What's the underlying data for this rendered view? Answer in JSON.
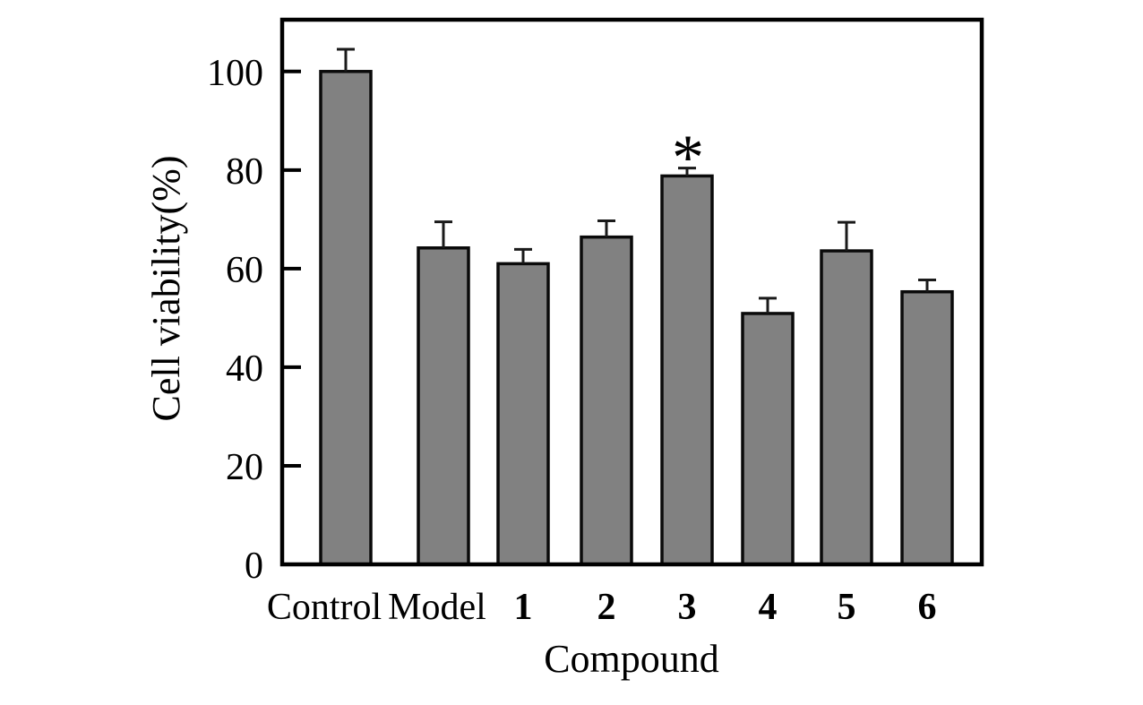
{
  "figure": {
    "background": "#ffffff",
    "bar_fill": "#818181",
    "bar_edge": "#0a0a0a",
    "axis_color": "#000000",
    "error_bar_color": "#1a1a1a",
    "text_color": "#000000"
  },
  "chart_data": {
    "type": "bar",
    "title": "",
    "xlabel": "Compound",
    "ylabel": "Cell viability(%)",
    "categories": [
      "Control",
      "Model",
      "1",
      "2",
      "3",
      "4",
      "5",
      "6"
    ],
    "values": [
      100,
      64.2,
      61,
      66.4,
      78.8,
      50.9,
      63.6,
      55.3
    ],
    "errors_plus": [
      4.5,
      5.3,
      2.9,
      3.3,
      1.6,
      3.1,
      5.8,
      2.4
    ],
    "emphasized_categories": [
      "1",
      "2",
      "3",
      "4",
      "5",
      "6"
    ],
    "yticks": [
      0,
      20,
      40,
      60,
      80,
      100
    ],
    "ytick_labels": [
      "0",
      "20",
      "40",
      "60",
      "80",
      "100"
    ],
    "ylim": [
      0,
      110.5
    ],
    "grid": false,
    "legend": null,
    "annotations": [
      {
        "text": "*",
        "category": "3"
      }
    ]
  }
}
